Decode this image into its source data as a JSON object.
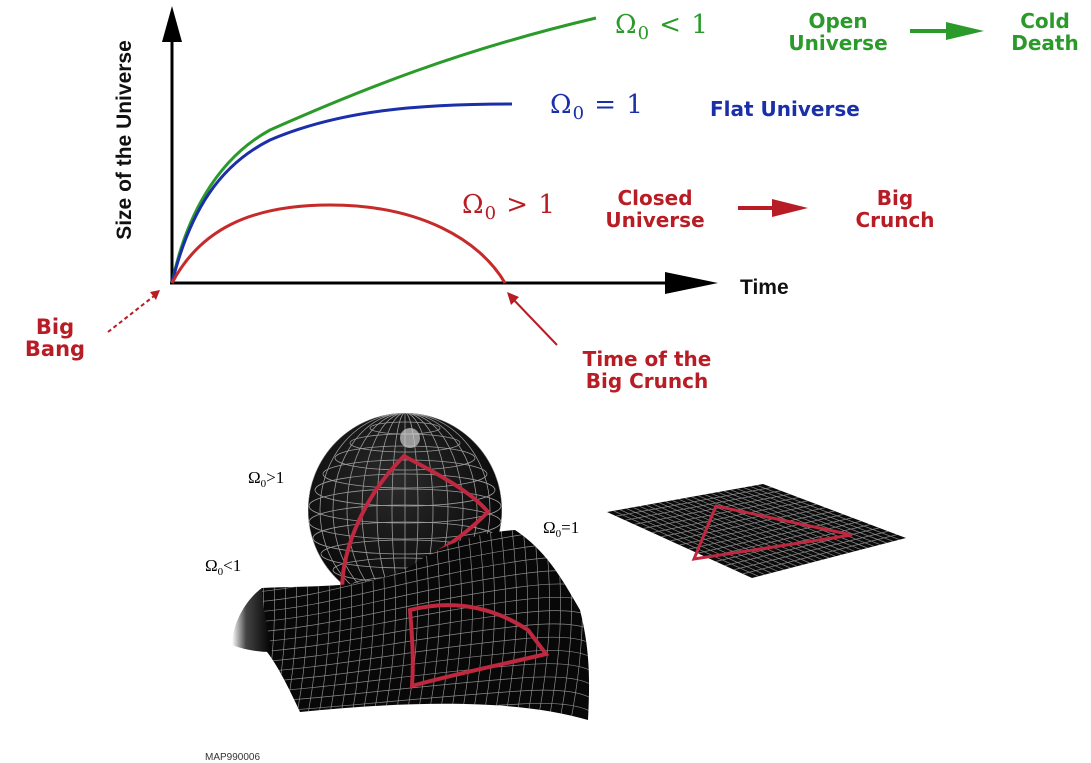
{
  "top_diagram": {
    "y_axis_label": "Size of the Universe",
    "x_axis_label": "Time",
    "open": {
      "omega_symbol": "Ω",
      "omega_subscript": "0",
      "omega_relation": "< 1",
      "name_line1": "Open",
      "name_line2": "Universe",
      "fate_line1": "Cold",
      "fate_line2": "Death",
      "color": "#2a9a2a"
    },
    "flat": {
      "omega_symbol": "Ω",
      "omega_subscript": "0",
      "omega_relation": "= 1",
      "name": "Flat Universe",
      "color": "#1a2fa8"
    },
    "closed": {
      "omega_symbol": "Ω",
      "omega_subscript": "0",
      "omega_relation": "> 1",
      "name_line1": "Closed",
      "name_line2": "Universe",
      "fate_line1": "Big",
      "fate_line2": "Crunch",
      "color": "#b81c24"
    },
    "big_bang_line1": "Big",
    "big_bang_line2": "Bang",
    "crunch_time_line1": "Time of the",
    "crunch_time_line2": "Big Crunch"
  },
  "bottom_diagram": {
    "sphere": {
      "omega_symbol": "Ω",
      "omega_subscript": "0",
      "omega_relation": ">1"
    },
    "plane": {
      "omega_symbol": "Ω",
      "omega_subscript": "0",
      "omega_relation": "=1"
    },
    "saddle": {
      "omega_symbol": "Ω",
      "omega_subscript": "0",
      "omega_relation": "<1"
    },
    "triangle_color": "#c0283f",
    "caption": "MAP990006"
  }
}
